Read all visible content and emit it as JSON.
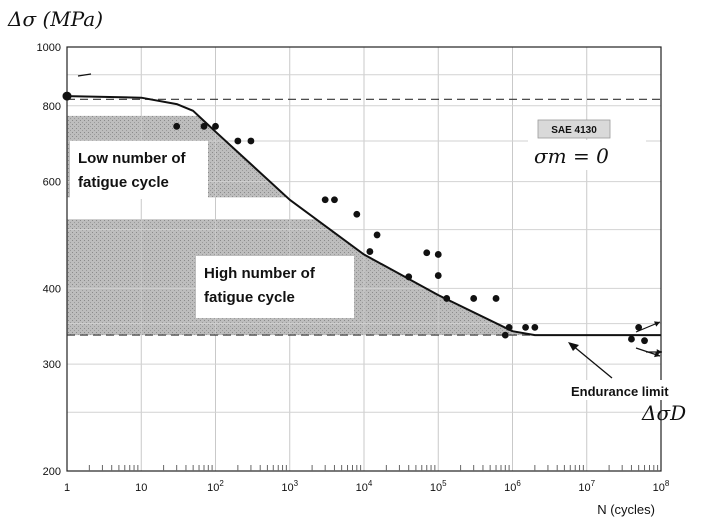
{
  "chart_data": {
    "type": "line",
    "title": "",
    "ylabel": "Δσ (MPa)",
    "xlabel": "N (cycles)",
    "x_scale": "log",
    "y_scale": "log",
    "xlim": [
      1,
      100000000
    ],
    "ylim": [
      200,
      1000
    ],
    "x_ticks": [
      1,
      10,
      100,
      1000,
      10000,
      100000,
      1000000,
      10000000,
      100000000
    ],
    "x_tick_labels": [
      {
        "base": "1",
        "exp": ""
      },
      {
        "base": "10",
        "exp": ""
      },
      {
        "base": "10",
        "exp": "2"
      },
      {
        "base": "10",
        "exp": "3"
      },
      {
        "base": "10",
        "exp": "4"
      },
      {
        "base": "10",
        "exp": "5"
      },
      {
        "base": "10",
        "exp": "6"
      },
      {
        "base": "10",
        "exp": "7"
      },
      {
        "base": "10",
        "exp": "8"
      }
    ],
    "y_ticks": [
      200,
      300,
      400,
      600,
      800,
      1000
    ],
    "y_tick_labels": [
      "200",
      "300",
      "400",
      "600",
      "800",
      "1000"
    ],
    "grid": true,
    "material_label": "SAE 4130",
    "mean_stress_label": "σm = 0",
    "curve": {
      "x": [
        1,
        10,
        30,
        50,
        70,
        100,
        1000,
        10000,
        100000,
        1000000,
        2000000,
        100000000
      ],
      "y": [
        830,
        825,
        805,
        785,
        755,
        725,
        560,
        455,
        390,
        340,
        335,
        335
      ]
    },
    "points": {
      "x": [
        1,
        30,
        70,
        100,
        200,
        300,
        3000,
        4000,
        8000,
        15000,
        12000,
        40000,
        70000,
        100000,
        100000,
        130000,
        300000,
        600000,
        800000,
        900000,
        1500000,
        2000000,
        40000000,
        50000000,
        60000000
      ],
      "y": [
        830,
        740,
        740,
        740,
        700,
        700,
        560,
        560,
        530,
        490,
        460,
        418,
        458,
        455,
        420,
        385,
        385,
        385,
        335,
        345,
        345,
        345,
        330,
        345,
        328
      ]
    },
    "reference_lines": [
      {
        "y": 820,
        "style": "dashed"
      },
      {
        "y": 335,
        "style": "dashed"
      }
    ],
    "regions": [
      {
        "label_lines": [
          "Low number of",
          "fatigue cycle"
        ],
        "y_range": [
          565,
          770
        ]
      },
      {
        "label_lines": [
          "High number of",
          "fatigue cycle"
        ],
        "y_range": [
          335,
          520
        ]
      }
    ],
    "annotations": {
      "endurance_label": "Endurance limit",
      "endurance_symbol": "ΔσD"
    }
  }
}
